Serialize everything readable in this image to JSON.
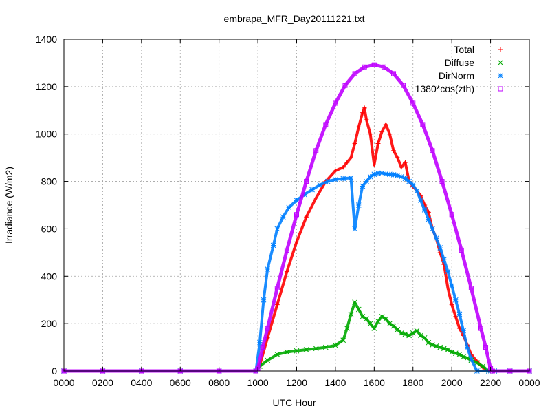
{
  "chart_data": {
    "type": "scatter",
    "title": "embrapa_MFR_Day20111221.txt",
    "xlabel": "UTC Hour",
    "ylabel": "Irradiance (W/m2)",
    "xlim": [
      0,
      24
    ],
    "ylim": [
      0,
      1400
    ],
    "grid": true,
    "legend_position": "top-right",
    "x_ticks": [
      {
        "value": 0,
        "label": "0000"
      },
      {
        "value": 2,
        "label": "0200"
      },
      {
        "value": 4,
        "label": "0400"
      },
      {
        "value": 6,
        "label": "0600"
      },
      {
        "value": 8,
        "label": "0800"
      },
      {
        "value": 10,
        "label": "1000"
      },
      {
        "value": 12,
        "label": "1200"
      },
      {
        "value": 14,
        "label": "1400"
      },
      {
        "value": 16,
        "label": "1600"
      },
      {
        "value": 18,
        "label": "1800"
      },
      {
        "value": 20,
        "label": "2000"
      },
      {
        "value": 22,
        "label": "2200"
      },
      {
        "value": 24,
        "label": "0000"
      }
    ],
    "y_ticks": [
      0,
      200,
      400,
      600,
      800,
      1000,
      1200,
      1400
    ],
    "series": [
      {
        "name": "Total",
        "marker": "plus",
        "color": "#ff0000",
        "points": [
          [
            0,
            0
          ],
          [
            2,
            0
          ],
          [
            4,
            0
          ],
          [
            6,
            0
          ],
          [
            8,
            0
          ],
          [
            9.9,
            0
          ],
          [
            10.1,
            25
          ],
          [
            10.5,
            140
          ],
          [
            11,
            280
          ],
          [
            11.5,
            420
          ],
          [
            12,
            545
          ],
          [
            12.5,
            650
          ],
          [
            13,
            730
          ],
          [
            13.5,
            800
          ],
          [
            14,
            845
          ],
          [
            14.4,
            860
          ],
          [
            14.6,
            880
          ],
          [
            14.8,
            900
          ],
          [
            15,
            960
          ],
          [
            15.2,
            1030
          ],
          [
            15.4,
            1090
          ],
          [
            15.5,
            1110
          ],
          [
            15.6,
            1060
          ],
          [
            15.8,
            1000
          ],
          [
            16,
            870
          ],
          [
            16.2,
            960
          ],
          [
            16.4,
            1010
          ],
          [
            16.6,
            1040
          ],
          [
            16.8,
            1000
          ],
          [
            17,
            930
          ],
          [
            17.2,
            900
          ],
          [
            17.4,
            860
          ],
          [
            17.6,
            880
          ],
          [
            17.8,
            800
          ],
          [
            18,
            780
          ],
          [
            18.2,
            760
          ],
          [
            18.4,
            740
          ],
          [
            18.6,
            700
          ],
          [
            18.8,
            670
          ],
          [
            19,
            600
          ],
          [
            19.2,
            560
          ],
          [
            19.4,
            500
          ],
          [
            19.6,
            450
          ],
          [
            19.8,
            350
          ],
          [
            20,
            280
          ],
          [
            20.2,
            230
          ],
          [
            20.4,
            180
          ],
          [
            20.6,
            150
          ],
          [
            20.8,
            110
          ],
          [
            21,
            70
          ],
          [
            21.3,
            40
          ],
          [
            21.6,
            15
          ],
          [
            21.9,
            0
          ],
          [
            22.2,
            0
          ],
          [
            23,
            0
          ],
          [
            24,
            0
          ]
        ]
      },
      {
        "name": "Diffuse",
        "marker": "cross",
        "color": "#00aa00",
        "points": [
          [
            0,
            0
          ],
          [
            2,
            0
          ],
          [
            4,
            0
          ],
          [
            6,
            0
          ],
          [
            8,
            0
          ],
          [
            9.9,
            0
          ],
          [
            10.1,
            20
          ],
          [
            10.5,
            45
          ],
          [
            11,
            70
          ],
          [
            11.5,
            80
          ],
          [
            12,
            85
          ],
          [
            12.5,
            90
          ],
          [
            13,
            95
          ],
          [
            13.5,
            100
          ],
          [
            14,
            108
          ],
          [
            14.4,
            130
          ],
          [
            14.6,
            180
          ],
          [
            14.8,
            240
          ],
          [
            15,
            290
          ],
          [
            15.2,
            260
          ],
          [
            15.4,
            230
          ],
          [
            15.6,
            220
          ],
          [
            15.8,
            200
          ],
          [
            16,
            180
          ],
          [
            16.2,
            210
          ],
          [
            16.4,
            230
          ],
          [
            16.6,
            220
          ],
          [
            16.8,
            200
          ],
          [
            17,
            190
          ],
          [
            17.2,
            175
          ],
          [
            17.4,
            160
          ],
          [
            17.6,
            155
          ],
          [
            17.8,
            150
          ],
          [
            18,
            160
          ],
          [
            18.2,
            170
          ],
          [
            18.4,
            150
          ],
          [
            18.6,
            140
          ],
          [
            18.8,
            120
          ],
          [
            19,
            110
          ],
          [
            19.2,
            105
          ],
          [
            19.4,
            100
          ],
          [
            19.6,
            95
          ],
          [
            19.8,
            90
          ],
          [
            20,
            80
          ],
          [
            20.2,
            75
          ],
          [
            20.4,
            70
          ],
          [
            20.6,
            60
          ],
          [
            20.8,
            55
          ],
          [
            21,
            45
          ],
          [
            21.3,
            35
          ],
          [
            21.6,
            20
          ],
          [
            21.9,
            0
          ],
          [
            22.2,
            0
          ],
          [
            23,
            0
          ],
          [
            24,
            0
          ]
        ]
      },
      {
        "name": "DirNorm",
        "marker": "star",
        "color": "#0080ff",
        "points": [
          [
            0,
            0
          ],
          [
            2,
            0
          ],
          [
            4,
            0
          ],
          [
            6,
            0
          ],
          [
            8,
            0
          ],
          [
            9.9,
            0
          ],
          [
            10.1,
            120
          ],
          [
            10.3,
            300
          ],
          [
            10.5,
            430
          ],
          [
            10.8,
            530
          ],
          [
            11,
            600
          ],
          [
            11.3,
            650
          ],
          [
            11.6,
            690
          ],
          [
            12,
            720
          ],
          [
            12.4,
            745
          ],
          [
            12.8,
            765
          ],
          [
            13.2,
            785
          ],
          [
            13.6,
            800
          ],
          [
            14,
            808
          ],
          [
            14.4,
            812
          ],
          [
            14.8,
            815
          ],
          [
            15,
            600
          ],
          [
            15.2,
            700
          ],
          [
            15.4,
            780
          ],
          [
            15.6,
            800
          ],
          [
            15.8,
            820
          ],
          [
            16,
            830
          ],
          [
            16.2,
            835
          ],
          [
            16.4,
            835
          ],
          [
            16.6,
            832
          ],
          [
            16.8,
            830
          ],
          [
            17,
            828
          ],
          [
            17.2,
            825
          ],
          [
            17.4,
            820
          ],
          [
            17.6,
            812
          ],
          [
            17.8,
            800
          ],
          [
            18,
            785
          ],
          [
            18.2,
            760
          ],
          [
            18.4,
            720
          ],
          [
            18.6,
            680
          ],
          [
            18.8,
            640
          ],
          [
            19,
            600
          ],
          [
            19.2,
            560
          ],
          [
            19.4,
            520
          ],
          [
            19.6,
            470
          ],
          [
            19.8,
            420
          ],
          [
            20,
            360
          ],
          [
            20.2,
            300
          ],
          [
            20.4,
            240
          ],
          [
            20.6,
            170
          ],
          [
            20.8,
            100
          ],
          [
            21,
            50
          ],
          [
            21.3,
            0
          ],
          [
            21.9,
            0
          ],
          [
            22.2,
            0
          ],
          [
            23,
            0
          ],
          [
            24,
            0
          ]
        ]
      },
      {
        "name": "1380*cos(zth)",
        "marker": "square",
        "color": "#bf00ff",
        "points": [
          [
            0,
            0
          ],
          [
            2,
            0
          ],
          [
            4,
            0
          ],
          [
            6,
            0
          ],
          [
            8,
            0
          ],
          [
            9.9,
            0
          ],
          [
            10,
            10
          ],
          [
            10.25,
            100
          ],
          [
            10.5,
            180
          ],
          [
            11,
            350
          ],
          [
            11.5,
            510
          ],
          [
            12,
            660
          ],
          [
            12.5,
            800
          ],
          [
            13,
            930
          ],
          [
            13.5,
            1040
          ],
          [
            14,
            1130
          ],
          [
            14.5,
            1205
          ],
          [
            15,
            1255
          ],
          [
            15.5,
            1283
          ],
          [
            16,
            1292
          ],
          [
            16.5,
            1283
          ],
          [
            17,
            1255
          ],
          [
            17.5,
            1205
          ],
          [
            18,
            1130
          ],
          [
            18.5,
            1040
          ],
          [
            19,
            930
          ],
          [
            19.5,
            800
          ],
          [
            20,
            660
          ],
          [
            20.5,
            510
          ],
          [
            21,
            350
          ],
          [
            21.5,
            180
          ],
          [
            21.75,
            100
          ],
          [
            22,
            10
          ],
          [
            22.1,
            0
          ],
          [
            23,
            0
          ],
          [
            24,
            0
          ]
        ]
      }
    ]
  }
}
